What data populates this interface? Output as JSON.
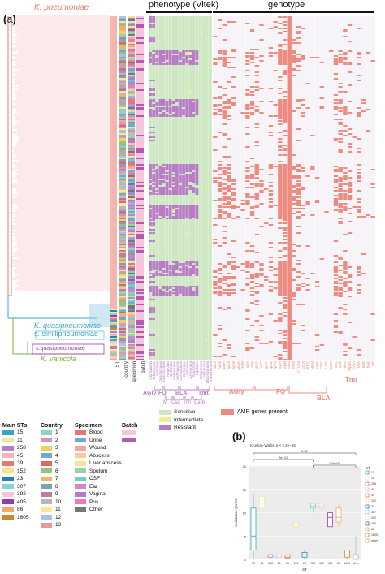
{
  "panel_a": {
    "label": "(a)",
    "header_phenotype": "phenotype (Vitek)",
    "header_genotype": "genotype",
    "species": {
      "kp": "K. pneumoniae",
      "kq": "K. quasipneumoniae",
      "ks": "s. similipneumoniae",
      "kqq": "s.quasipneumoniae",
      "kv": "K. variicola"
    },
    "meta_columns": [
      "ST",
      "country",
      "specimen",
      "batch"
    ],
    "phenotype_groups": {
      "agly": "AGly",
      "fq": "FQ",
      "bla": "BLA",
      "tmt": "Tmt",
      "m": "M",
      "csp": "Csp",
      "inh": "Inh",
      "carb": "Carb"
    },
    "phenotype_drugs": [
      "Gentamicin",
      "Tobramycin",
      "Amikacin",
      "Ciprofloxacin",
      "Levofloxacin",
      "Ampicillin",
      "Cefazolin",
      "Cefuroxime",
      "Ceftriaxone",
      "Ceftazidime",
      "Cefepime",
      "Cefoxitin",
      "Aztreonam",
      "Amp/Sulb",
      "Pip/Tazo",
      "Ertapenem",
      "Imipenem",
      "Nitrofurantoin",
      "Trimethoprim"
    ],
    "genotype_groups": {
      "agly": "AGly",
      "fq": "FQ",
      "bla": "BLA",
      "tmt": "Tmt"
    },
    "genotype_genes": [
      "aac3",
      "aac6",
      "aadA",
      "aph3",
      "aph6",
      "armA",
      "rmtB",
      "strA",
      "strB",
      "gyrA",
      "parC",
      "qnrA",
      "qnrB",
      "qnrS",
      "oqxA",
      "oqxB",
      "SHV",
      "TEM",
      "CTX-M",
      "OXA",
      "KPC",
      "NDM",
      "DHA",
      "CMY",
      "LEN",
      "OKP",
      "sul1",
      "sul2",
      "dfrA",
      "MphA",
      "catA",
      "tetA",
      "tetD",
      "floR",
      "arr"
    ],
    "amr_legend": "AMR genes present"
  },
  "legend": {
    "main_sts": {
      "title": "Main STs",
      "items": [
        "15",
        "11",
        "258",
        "45",
        "39",
        "152",
        "23",
        "307",
        "392",
        "405",
        "86",
        "1605"
      ]
    },
    "country": {
      "title": "Country",
      "items": [
        "1",
        "2",
        "3",
        "4",
        "5",
        "6",
        "7",
        "8",
        "9",
        "10",
        "11",
        "12",
        "13"
      ]
    },
    "specimen": {
      "title": "Specimen",
      "items": [
        "Blood",
        "Urine",
        "Wound",
        "Abscess",
        "Liver abscess",
        "Sputum",
        "CSF",
        "Ear",
        "Vaginal",
        "Pus",
        "Other"
      ]
    },
    "batch": {
      "title": "Batch"
    },
    "phenotype": {
      "items": [
        "Sensitive",
        "Intermediate",
        "Resistant"
      ]
    }
  },
  "colors": {
    "sensitive": "#cde8c2",
    "intermediate": "#f3ea9a",
    "resistant": "#b77cc4",
    "amr": "#ef8a80",
    "kp": "#e67770",
    "kq": "#3aa7c9",
    "kv": "#7ab33b"
  },
  "panel_b": {
    "label": "(b)",
    "chart_data": {
      "type": "box",
      "title": "Kruskal–Wallis, p < 2.2e−16",
      "xlabel": "ST",
      "ylabel": "resistance genes",
      "ylim": [
        0,
        20
      ],
      "yticks": [
        0,
        5,
        10,
        15,
        20
      ],
      "categories": [
        "15",
        "11",
        "258",
        "45",
        "39",
        "152",
        "23",
        "307",
        "392",
        "405",
        "86",
        "1605",
        "other"
      ],
      "legend_title": "ST",
      "boxes": [
        {
          "cat": "15",
          "q1": 2,
          "median": 5,
          "q3": 11,
          "min": 0,
          "max": 14
        },
        {
          "cat": "11",
          "q1": 11,
          "median": 12,
          "q3": 13.5,
          "min": 0,
          "max": 16
        },
        {
          "cat": "258",
          "q1": 0.5,
          "median": 1,
          "q3": 1,
          "min": 0,
          "max": 1
        },
        {
          "cat": "45",
          "q1": 0.5,
          "median": 1,
          "q3": 1,
          "min": 0,
          "max": 2
        },
        {
          "cat": "39",
          "q1": 0.3,
          "median": 0.5,
          "q3": 1,
          "min": 0,
          "max": 1
        },
        {
          "cat": "152",
          "q1": 7,
          "median": 7,
          "q3": 7.5,
          "min": 7,
          "max": 8
        },
        {
          "cat": "23",
          "q1": 0.5,
          "median": 1,
          "q3": 1.5,
          "min": 0,
          "max": 2
        },
        {
          "cat": "307",
          "q1": 11,
          "median": 11.5,
          "q3": 12,
          "min": 10,
          "max": 12
        },
        {
          "cat": "392",
          "q1": 11,
          "median": 11.5,
          "q3": 12,
          "min": 10,
          "max": 12
        },
        {
          "cat": "405",
          "q1": 7,
          "median": 9,
          "q3": 10,
          "min": 7,
          "max": 10
        },
        {
          "cat": "86",
          "q1": 8,
          "median": 9,
          "q3": 11,
          "min": 7,
          "max": 12
        },
        {
          "cat": "1605",
          "q1": 0.5,
          "median": 1,
          "q3": 2,
          "min": 0,
          "max": 2
        },
        {
          "cat": "other",
          "q1": 0,
          "median": 1,
          "q3": 1,
          "min": 0,
          "max": 5
        }
      ],
      "comparisons": [
        {
          "label": "0.32",
          "from": "15",
          "to": "other"
        },
        {
          "label": "8e−12",
          "from": "15",
          "to": "307"
        },
        {
          "label": "1.3e−05",
          "from": "307",
          "to": "other"
        }
      ]
    }
  }
}
